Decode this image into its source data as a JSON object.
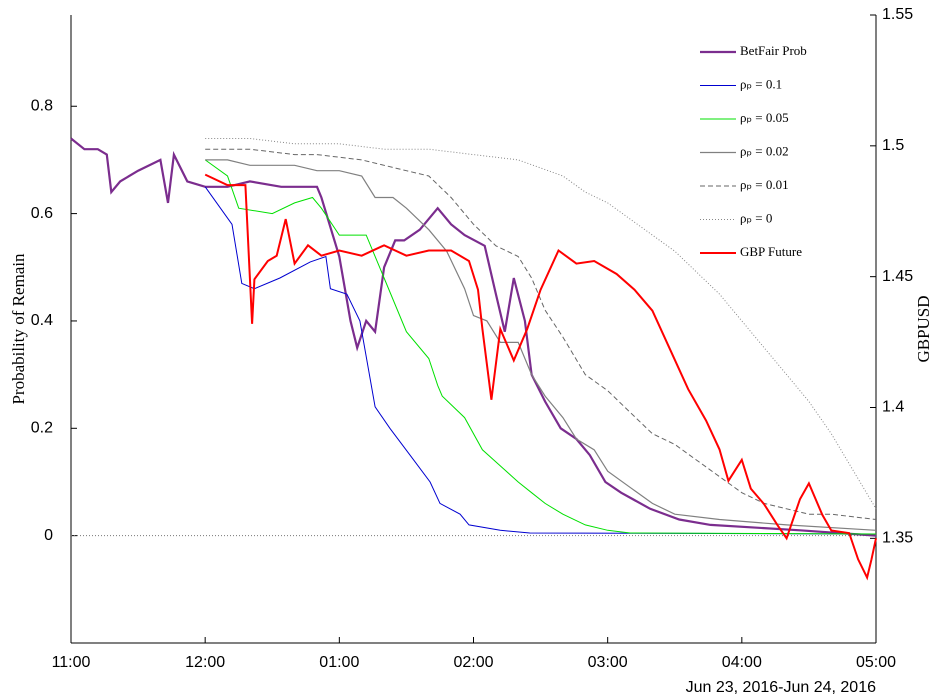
{
  "chart_data": {
    "type": "line",
    "ylabel": "Probability of Remain",
    "y2label": "GBPUSD",
    "xlabel": "Jun 23, 2016-Jun 24, 2016",
    "xlim": [
      0,
      18
    ],
    "xticks": [
      {
        "value": 0,
        "label": "11:00"
      },
      {
        "value": 3,
        "label": "12:00"
      },
      {
        "value": 6,
        "label": "01:00"
      },
      {
        "value": 9,
        "label": "02:00"
      },
      {
        "value": 12,
        "label": "03:00"
      },
      {
        "value": 15,
        "label": "04:00"
      },
      {
        "value": 18,
        "label": "05:00"
      }
    ],
    "ylim": [
      -0.2,
      0.97
    ],
    "yticks": [
      0,
      0.2,
      0.4,
      0.6,
      0.8
    ],
    "y2lim": [
      1.31,
      1.55
    ],
    "y2ticks": [
      1.35,
      1.4,
      1.45,
      1.5,
      1.55
    ],
    "hline": 0,
    "legend": "upper right",
    "series": [
      {
        "name": "BetFair Prob",
        "color": "#7b2d8e",
        "width": 2.2,
        "dash": "solid",
        "x": [
          0,
          0.3,
          0.6,
          0.8,
          0.9,
          1.1,
          1.5,
          2.0,
          2.17,
          2.3,
          2.6,
          3.0,
          3.5,
          4.0,
          4.7,
          5.5,
          5.6,
          6.0,
          6.25,
          6.4,
          6.6,
          6.8,
          7.0,
          7.25,
          7.45,
          7.8,
          8.2,
          8.5,
          8.8,
          9.25,
          9.5,
          9.7,
          9.9,
          10.15,
          10.3,
          10.6,
          10.95,
          11.3,
          11.6,
          11.95,
          12.3,
          12.95,
          13.6,
          14.3,
          16.3,
          18
        ],
        "values": [
          0.74,
          0.72,
          0.72,
          0.71,
          0.64,
          0.66,
          0.68,
          0.7,
          0.62,
          0.71,
          0.66,
          0.65,
          0.65,
          0.66,
          0.65,
          0.65,
          0.63,
          0.52,
          0.4,
          0.35,
          0.4,
          0.38,
          0.5,
          0.55,
          0.55,
          0.57,
          0.61,
          0.58,
          0.56,
          0.54,
          0.45,
          0.38,
          0.48,
          0.4,
          0.3,
          0.25,
          0.2,
          0.18,
          0.15,
          0.1,
          0.08,
          0.05,
          0.03,
          0.02,
          0.01,
          0.0
        ]
      },
      {
        "name": "ρₚ = 0.1",
        "color": "#0000d0",
        "width": 1,
        "dash": "solid",
        "x": [
          3.0,
          3.6,
          3.82,
          4.1,
          4.67,
          5.35,
          5.7,
          5.8,
          6.17,
          6.46,
          6.8,
          7.13,
          7.58,
          8.03,
          8.25,
          8.7,
          8.9,
          9.6,
          10.26,
          18
        ],
        "values": [
          0.65,
          0.58,
          0.47,
          0.46,
          0.48,
          0.51,
          0.52,
          0.46,
          0.45,
          0.4,
          0.24,
          0.2,
          0.15,
          0.1,
          0.06,
          0.04,
          0.02,
          0.01,
          0.005,
          0.003
        ]
      },
      {
        "name": "ρₚ = 0.05",
        "color": "#00e000",
        "width": 1,
        "dash": "solid",
        "x": [
          3.0,
          3.5,
          3.75,
          4.5,
          5.0,
          5.4,
          5.6,
          6.0,
          6.6,
          7.0,
          7.5,
          8.0,
          8.2,
          8.3,
          8.8,
          9.2,
          9.6,
          10.0,
          10.3,
          10.6,
          11.0,
          11.5,
          12.0,
          12.5,
          18
        ],
        "values": [
          0.7,
          0.67,
          0.61,
          0.6,
          0.62,
          0.63,
          0.61,
          0.56,
          0.56,
          0.48,
          0.38,
          0.33,
          0.28,
          0.26,
          0.22,
          0.16,
          0.13,
          0.1,
          0.08,
          0.06,
          0.04,
          0.02,
          0.01,
          0.005,
          0.003
        ]
      },
      {
        "name": "ρₚ = 0.02",
        "color": "#808080",
        "width": 1.2,
        "dash": "solid",
        "x": [
          3.0,
          3.5,
          4.0,
          5.0,
          5.5,
          6.0,
          6.5,
          6.8,
          7.2,
          7.5,
          8.0,
          8.4,
          8.8,
          9.0,
          9.3,
          9.6,
          10.0,
          10.3,
          10.6,
          11.0,
          11.3,
          11.7,
          12.0,
          12.5,
          13.0,
          13.5,
          14.5,
          16.0,
          18.0
        ],
        "values": [
          0.7,
          0.7,
          0.69,
          0.69,
          0.68,
          0.68,
          0.67,
          0.63,
          0.63,
          0.61,
          0.57,
          0.53,
          0.46,
          0.41,
          0.4,
          0.36,
          0.36,
          0.3,
          0.26,
          0.22,
          0.18,
          0.16,
          0.12,
          0.09,
          0.06,
          0.04,
          0.03,
          0.02,
          0.01
        ]
      },
      {
        "name": "ρₚ = 0.01",
        "color": "#666666",
        "width": 1,
        "dash": "dashed",
        "x": [
          3.0,
          4.0,
          5.0,
          5.5,
          6.5,
          7.0,
          7.5,
          8.0,
          8.5,
          9.0,
          9.5,
          10.0,
          10.3,
          10.6,
          11.0,
          11.5,
          12.0,
          12.5,
          13.0,
          13.5,
          14.0,
          14.5,
          15.0,
          15.5,
          16.0,
          16.5,
          17.0,
          18.0
        ],
        "values": [
          0.72,
          0.72,
          0.71,
          0.71,
          0.7,
          0.69,
          0.68,
          0.67,
          0.63,
          0.58,
          0.54,
          0.52,
          0.48,
          0.42,
          0.37,
          0.3,
          0.27,
          0.23,
          0.19,
          0.17,
          0.14,
          0.11,
          0.08,
          0.06,
          0.05,
          0.04,
          0.04,
          0.03
        ]
      },
      {
        "name": "ρₚ = 0",
        "color": "#888888",
        "width": 1,
        "dash": "dotted",
        "x": [
          3.0,
          4.0,
          5.0,
          6.0,
          7.0,
          8.0,
          9.0,
          10.0,
          11.0,
          11.5,
          12.0,
          12.5,
          13.0,
          13.5,
          14.0,
          14.5,
          15.0,
          15.5,
          16.0,
          16.5,
          17.0,
          17.5,
          18.0
        ],
        "values": [
          0.74,
          0.74,
          0.73,
          0.73,
          0.72,
          0.72,
          0.71,
          0.7,
          0.67,
          0.64,
          0.62,
          0.59,
          0.56,
          0.53,
          0.49,
          0.45,
          0.4,
          0.35,
          0.3,
          0.25,
          0.19,
          0.12,
          0.05
        ]
      },
      {
        "name": "GBP Future",
        "color": "#ff0000",
        "width": 2,
        "dash": "solid",
        "axis": "y2",
        "x": [
          3.0,
          3.5,
          3.9,
          4.05,
          4.1,
          4.4,
          4.6,
          4.8,
          5.0,
          5.3,
          5.6,
          6.0,
          6.5,
          7.0,
          7.5,
          8.0,
          8.5,
          8.9,
          9.1,
          9.2,
          9.4,
          9.6,
          9.9,
          10.2,
          10.5,
          10.9,
          11.3,
          11.7,
          12.2,
          12.6,
          13.0,
          13.4,
          13.8,
          14.2,
          14.5,
          14.7,
          15.0,
          15.2,
          15.5,
          15.8,
          16.0,
          16.3,
          16.5,
          16.8,
          17.0,
          17.4,
          17.6,
          17.8,
          17.9,
          18.0
        ],
        "values": [
          1.489,
          1.485,
          1.485,
          1.432,
          1.449,
          1.456,
          1.458,
          1.472,
          1.455,
          1.462,
          1.458,
          1.46,
          1.458,
          1.462,
          1.458,
          1.46,
          1.46,
          1.456,
          1.445,
          1.43,
          1.403,
          1.43,
          1.418,
          1.43,
          1.445,
          1.46,
          1.455,
          1.456,
          1.451,
          1.445,
          1.437,
          1.422,
          1.407,
          1.395,
          1.384,
          1.372,
          1.38,
          1.369,
          1.363,
          1.355,
          1.35,
          1.365,
          1.371,
          1.359,
          1.353,
          1.352,
          1.342,
          1.335,
          1.342,
          1.35
        ]
      }
    ]
  }
}
